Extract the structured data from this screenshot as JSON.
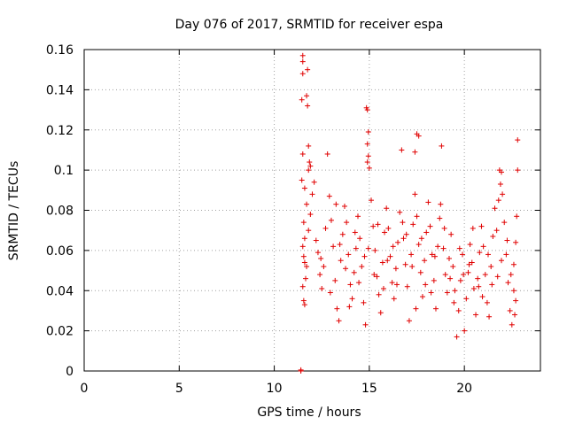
{
  "chart_data": {
    "type": "scatter",
    "title": "Day 076 of 2017, SRMTID for receiver espa",
    "xlabel": "GPS time / hours",
    "ylabel": "SRMTID / TECUs",
    "xlim": [
      0,
      24
    ],
    "ylim": [
      0,
      0.16
    ],
    "xticks": [
      0,
      5,
      10,
      15,
      20
    ],
    "yticks": [
      0,
      0.02,
      0.04,
      0.06,
      0.08,
      0.1,
      0.12,
      0.14,
      0.16
    ],
    "xtick_labels": [
      "0",
      "5",
      "10",
      "15",
      "20"
    ],
    "ytick_labels": [
      "0",
      "0.02",
      "0.04",
      "0.06",
      "0.08",
      "0.1",
      "0.12",
      "0.14",
      "0.16"
    ],
    "grid": true,
    "marker": "+",
    "color": "#e00000",
    "series": [
      {
        "name": "SRMTID",
        "points": [
          [
            11.4,
            0.0
          ],
          [
            11.4,
            0.0005
          ],
          [
            11.5,
            0.157
          ],
          [
            11.5,
            0.154
          ],
          [
            11.5,
            0.148
          ],
          [
            11.45,
            0.135
          ],
          [
            11.5,
            0.108
          ],
          [
            11.45,
            0.095
          ],
          [
            11.75,
            0.15
          ],
          [
            11.7,
            0.137
          ],
          [
            11.75,
            0.132
          ],
          [
            11.8,
            0.112
          ],
          [
            11.85,
            0.104
          ],
          [
            11.8,
            0.1
          ],
          [
            11.9,
            0.102
          ],
          [
            11.6,
            0.091
          ],
          [
            11.7,
            0.083
          ],
          [
            11.55,
            0.074
          ],
          [
            11.6,
            0.066
          ],
          [
            11.5,
            0.062
          ],
          [
            11.55,
            0.057
          ],
          [
            11.6,
            0.054
          ],
          [
            11.5,
            0.042
          ],
          [
            11.55,
            0.035
          ],
          [
            11.6,
            0.033
          ],
          [
            11.65,
            0.046
          ],
          [
            11.7,
            0.052
          ],
          [
            11.8,
            0.07
          ],
          [
            11.9,
            0.078
          ],
          [
            12.0,
            0.088
          ],
          [
            12.1,
            0.094
          ],
          [
            12.2,
            0.065
          ],
          [
            12.3,
            0.059
          ],
          [
            12.4,
            0.048
          ],
          [
            12.5,
            0.041
          ],
          [
            12.6,
            0.052
          ],
          [
            12.8,
            0.108
          ],
          [
            12.9,
            0.087
          ],
          [
            13.0,
            0.075
          ],
          [
            13.1,
            0.062
          ],
          [
            13.2,
            0.045
          ],
          [
            13.3,
            0.031
          ],
          [
            13.4,
            0.025
          ],
          [
            13.5,
            0.055
          ],
          [
            13.6,
            0.068
          ],
          [
            13.7,
            0.082
          ],
          [
            13.8,
            0.074
          ],
          [
            13.9,
            0.058
          ],
          [
            14.0,
            0.043
          ],
          [
            14.1,
            0.036
          ],
          [
            14.2,
            0.049
          ],
          [
            14.3,
            0.061
          ],
          [
            14.4,
            0.077
          ],
          [
            14.5,
            0.066
          ],
          [
            14.6,
            0.052
          ],
          [
            14.7,
            0.034
          ],
          [
            14.8,
            0.023
          ],
          [
            14.85,
            0.131
          ],
          [
            14.9,
            0.13
          ],
          [
            14.95,
            0.119
          ],
          [
            14.9,
            0.113
          ],
          [
            14.95,
            0.107
          ],
          [
            14.9,
            0.104
          ],
          [
            15.0,
            0.101
          ],
          [
            15.1,
            0.085
          ],
          [
            15.2,
            0.072
          ],
          [
            15.3,
            0.06
          ],
          [
            15.4,
            0.047
          ],
          [
            15.5,
            0.038
          ],
          [
            15.6,
            0.029
          ],
          [
            15.7,
            0.054
          ],
          [
            15.8,
            0.069
          ],
          [
            15.9,
            0.081
          ],
          [
            16.0,
            0.071
          ],
          [
            16.1,
            0.057
          ],
          [
            16.2,
            0.044
          ],
          [
            16.3,
            0.036
          ],
          [
            16.4,
            0.051
          ],
          [
            16.5,
            0.064
          ],
          [
            16.6,
            0.079
          ],
          [
            16.7,
            0.11
          ],
          [
            16.8,
            0.066
          ],
          [
            16.9,
            0.053
          ],
          [
            17.0,
            0.042
          ],
          [
            17.1,
            0.025
          ],
          [
            17.2,
            0.058
          ],
          [
            17.3,
            0.073
          ],
          [
            17.4,
            0.088
          ],
          [
            17.5,
            0.077
          ],
          [
            17.6,
            0.063
          ],
          [
            17.7,
            0.049
          ],
          [
            17.8,
            0.037
          ],
          [
            17.5,
            0.118
          ],
          [
            17.6,
            0.117
          ],
          [
            17.4,
            0.109
          ],
          [
            17.9,
            0.055
          ],
          [
            18.0,
            0.069
          ],
          [
            18.1,
            0.084
          ],
          [
            18.2,
            0.072
          ],
          [
            18.3,
            0.058
          ],
          [
            18.4,
            0.045
          ],
          [
            18.5,
            0.031
          ],
          [
            18.6,
            0.062
          ],
          [
            18.7,
            0.076
          ],
          [
            18.8,
            0.112
          ],
          [
            18.9,
            0.061
          ],
          [
            19.0,
            0.048
          ],
          [
            19.1,
            0.039
          ],
          [
            19.2,
            0.056
          ],
          [
            19.3,
            0.068
          ],
          [
            19.4,
            0.052
          ],
          [
            19.5,
            0.04
          ],
          [
            19.6,
            0.017
          ],
          [
            19.7,
            0.03
          ],
          [
            19.8,
            0.045
          ],
          [
            19.9,
            0.058
          ],
          [
            20.0,
            0.02
          ],
          [
            20.1,
            0.036
          ],
          [
            20.2,
            0.049
          ],
          [
            20.3,
            0.063
          ],
          [
            20.4,
            0.054
          ],
          [
            20.5,
            0.041
          ],
          [
            20.6,
            0.028
          ],
          [
            20.7,
            0.046
          ],
          [
            20.8,
            0.059
          ],
          [
            20.9,
            0.072
          ],
          [
            21.0,
            0.062
          ],
          [
            21.1,
            0.048
          ],
          [
            21.2,
            0.034
          ],
          [
            21.3,
            0.027
          ],
          [
            21.4,
            0.052
          ],
          [
            21.5,
            0.067
          ],
          [
            21.6,
            0.081
          ],
          [
            21.7,
            0.07
          ],
          [
            21.8,
            0.085
          ],
          [
            21.9,
            0.093
          ],
          [
            21.85,
            0.1
          ],
          [
            21.95,
            0.099
          ],
          [
            22.0,
            0.088
          ],
          [
            22.1,
            0.074
          ],
          [
            22.2,
            0.058
          ],
          [
            22.3,
            0.044
          ],
          [
            22.4,
            0.03
          ],
          [
            22.5,
            0.023
          ],
          [
            22.6,
            0.053
          ],
          [
            22.7,
            0.064
          ],
          [
            22.75,
            0.077
          ],
          [
            22.8,
            0.115
          ],
          [
            22.8,
            0.1
          ],
          [
            22.7,
            0.035
          ],
          [
            22.6,
            0.04
          ],
          [
            12.7,
            0.071
          ],
          [
            13.25,
            0.083
          ],
          [
            13.75,
            0.051
          ],
          [
            14.25,
            0.069
          ],
          [
            14.75,
            0.057
          ],
          [
            15.25,
            0.048
          ],
          [
            15.75,
            0.041
          ],
          [
            16.25,
            0.062
          ],
          [
            16.75,
            0.074
          ],
          [
            17.25,
            0.052
          ],
          [
            17.75,
            0.066
          ],
          [
            18.25,
            0.039
          ],
          [
            18.75,
            0.083
          ],
          [
            19.25,
            0.046
          ],
          [
            19.75,
            0.061
          ],
          [
            20.25,
            0.053
          ],
          [
            20.75,
            0.042
          ],
          [
            21.25,
            0.058
          ],
          [
            21.75,
            0.047
          ],
          [
            22.25,
            0.065
          ],
          [
            22.65,
            0.028
          ],
          [
            12.45,
            0.056
          ],
          [
            12.95,
            0.039
          ],
          [
            13.45,
            0.063
          ],
          [
            13.95,
            0.032
          ],
          [
            14.45,
            0.044
          ],
          [
            14.95,
            0.061
          ],
          [
            15.45,
            0.073
          ],
          [
            15.95,
            0.055
          ],
          [
            16.45,
            0.043
          ],
          [
            16.95,
            0.068
          ],
          [
            17.45,
            0.031
          ],
          [
            17.95,
            0.043
          ],
          [
            18.45,
            0.057
          ],
          [
            18.95,
            0.071
          ],
          [
            19.45,
            0.034
          ],
          [
            19.95,
            0.048
          ],
          [
            20.45,
            0.071
          ],
          [
            20.95,
            0.037
          ],
          [
            21.45,
            0.043
          ],
          [
            21.95,
            0.055
          ],
          [
            22.45,
            0.048
          ]
        ]
      }
    ]
  }
}
